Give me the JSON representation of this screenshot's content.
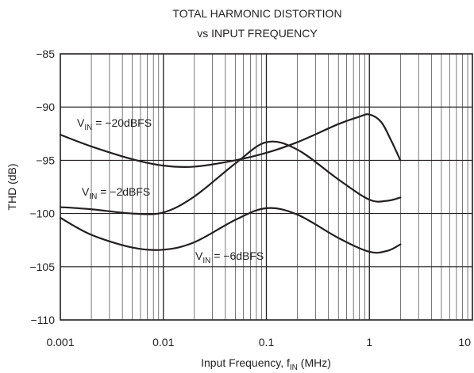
{
  "chart_data": {
    "type": "line",
    "title": "TOTAL HARMONIC DISTORTION",
    "subtitle": "vs INPUT FREQUENCY",
    "xlabel": {
      "main": "Input Frequency, f",
      "sub": "IN",
      "tail": " (MHz)"
    },
    "ylabel": "THD (dB)",
    "x_scale": "log",
    "xlim": [
      0.001,
      10
    ],
    "ylim": [
      -110,
      -85
    ],
    "x_ticks": [
      "0.001",
      "0.01",
      "0.1",
      "1",
      "10"
    ],
    "y_ticks": [
      "−85",
      "−90",
      "−95",
      "−100",
      "−105",
      "−110"
    ],
    "grid": true,
    "series": [
      {
        "label": {
          "pre": "V",
          "sub": "IN",
          "post": " = −20dBFS"
        },
        "x": [
          0.001,
          0.002,
          0.005,
          0.01,
          0.02,
          0.05,
          0.1,
          0.2,
          0.5,
          0.8,
          1.0,
          1.3,
          1.6,
          2.0
        ],
        "y": [
          -92.6,
          -93.7,
          -94.9,
          -95.5,
          -95.6,
          -95.0,
          -94.3,
          -93.3,
          -91.6,
          -90.9,
          -90.7,
          -91.4,
          -93.0,
          -95.0
        ]
      },
      {
        "label": {
          "pre": "V",
          "sub": "IN",
          "post": " = −2dBFS"
        },
        "x": [
          0.001,
          0.002,
          0.005,
          0.01,
          0.02,
          0.05,
          0.1,
          0.2,
          0.5,
          1.0,
          1.5,
          2.0
        ],
        "y": [
          -99.4,
          -99.6,
          -100.0,
          -99.9,
          -98.4,
          -95.3,
          -93.3,
          -94.0,
          -96.8,
          -98.7,
          -98.8,
          -98.5
        ]
      },
      {
        "label": {
          "pre": "V",
          "sub": "IN",
          "post": " = −6dBFS"
        },
        "x": [
          0.001,
          0.002,
          0.005,
          0.01,
          0.02,
          0.05,
          0.1,
          0.2,
          0.5,
          1.0,
          1.5,
          2.0
        ],
        "y": [
          -100.4,
          -102.0,
          -103.2,
          -103.4,
          -102.7,
          -100.6,
          -99.5,
          -100.1,
          -102.3,
          -103.6,
          -103.5,
          -102.9
        ]
      }
    ],
    "line_color": "#231f20",
    "grid_color": "#231f20"
  }
}
